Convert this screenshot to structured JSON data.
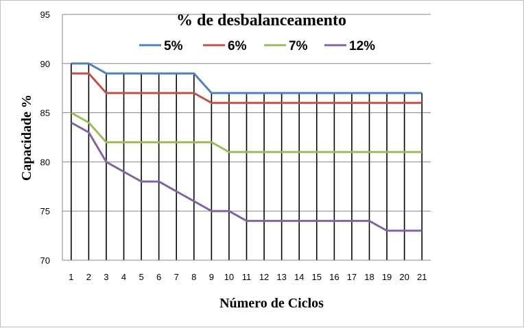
{
  "chart_data": {
    "type": "line",
    "title": "% de desbalanceamento",
    "xlabel": "Número de Ciclos",
    "ylabel": "Capacidade %",
    "x": [
      1,
      2,
      3,
      4,
      5,
      6,
      7,
      8,
      9,
      10,
      11,
      12,
      13,
      14,
      15,
      16,
      17,
      18,
      19,
      20,
      21
    ],
    "ylim": [
      70,
      95
    ],
    "yticks": [
      70,
      75,
      80,
      85,
      90,
      95
    ],
    "grid": "horizontal",
    "drop_lines": true,
    "legend_placement": "top",
    "series": [
      {
        "name": "5%",
        "color": "#4f81bd",
        "values": [
          90,
          90,
          89,
          89,
          89,
          89,
          89,
          89,
          87,
          87,
          87,
          87,
          87,
          87,
          87,
          87,
          87,
          87,
          87,
          87,
          87
        ]
      },
      {
        "name": "6%",
        "color": "#c0504d",
        "values": [
          89,
          89,
          87,
          87,
          87,
          87,
          87,
          87,
          86,
          86,
          86,
          86,
          86,
          86,
          86,
          86,
          86,
          86,
          86,
          86,
          86
        ]
      },
      {
        "name": "7%",
        "color": "#9bbb59",
        "values": [
          85,
          84,
          82,
          82,
          82,
          82,
          82,
          82,
          82,
          81,
          81,
          81,
          81,
          81,
          81,
          81,
          81,
          81,
          81,
          81,
          81
        ]
      },
      {
        "name": "12%",
        "color": "#8064a2",
        "values": [
          84,
          83,
          80,
          79,
          78,
          78,
          77,
          76,
          75,
          75,
          74,
          74,
          74,
          74,
          74,
          74,
          74,
          74,
          73,
          73,
          73
        ]
      }
    ]
  }
}
